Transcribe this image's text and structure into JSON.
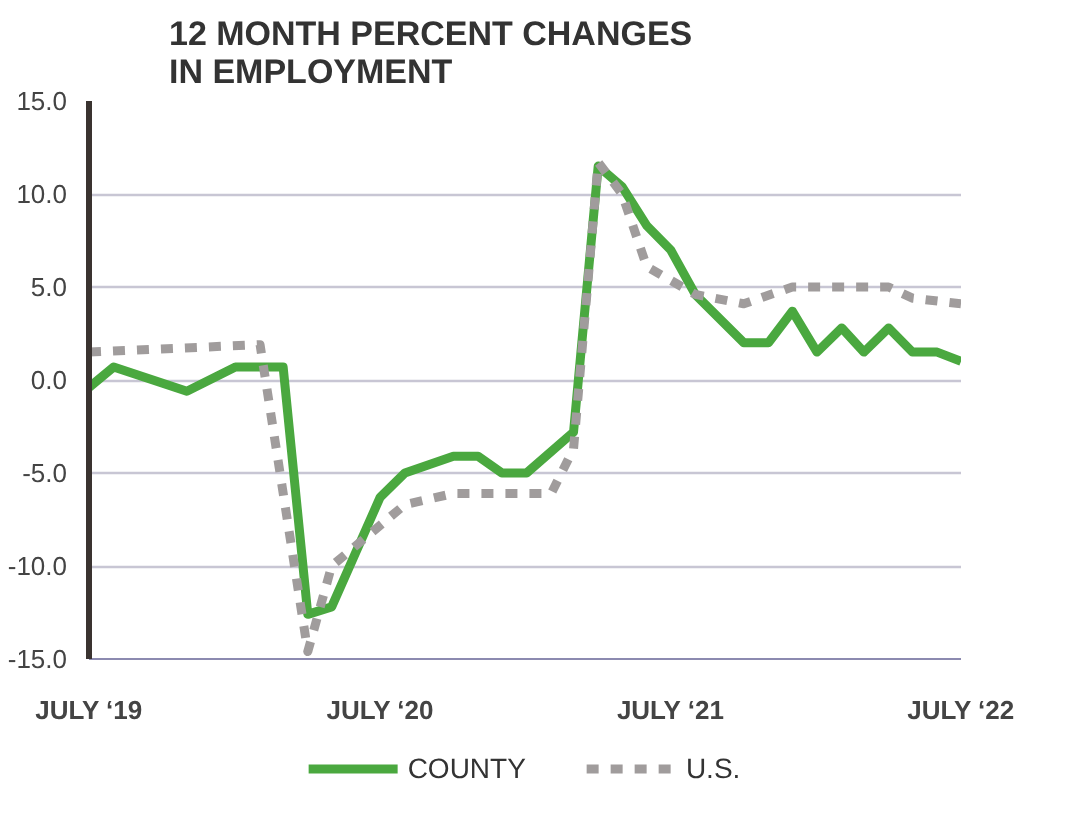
{
  "chart_data": {
    "type": "line",
    "title": "12 MONTH PERCENT CHANGES\nIN EMPLOYMENT",
    "xlim": [
      "2019-07",
      "2022-07"
    ],
    "xticks": [
      {
        "value": "2019-07",
        "label": "JULY ‘19"
      },
      {
        "value": "2020-07",
        "label": "JULY ‘20"
      },
      {
        "value": "2021-07",
        "label": "JULY ‘21"
      },
      {
        "value": "2022-07",
        "label": "JULY ‘22"
      }
    ],
    "ylim": [
      -15,
      15
    ],
    "yticks": [
      {
        "value": -15,
        "label": "-15.0"
      },
      {
        "value": -10,
        "label": "-10.0"
      },
      {
        "value": -5,
        "label": "-5.0"
      },
      {
        "value": 0,
        "label": "0.0"
      },
      {
        "value": 5,
        "label": "5.0"
      },
      {
        "value": 10,
        "label": "10.0"
      },
      {
        "value": 15,
        "label": "15.0"
      }
    ],
    "grid": "y",
    "legend": "bottom",
    "series": [
      {
        "name": "COUNTY",
        "color": "#4aa83f",
        "line_style": "solid",
        "x": [
          "2019-07",
          "2019-08",
          "2019-11",
          "2020-01",
          "2020-03",
          "2020-04",
          "2020-05",
          "2020-07",
          "2020-08",
          "2020-10",
          "2020-11",
          "2020-12",
          "2021-01",
          "2021-03",
          "2021-04",
          "2021-05",
          "2021-06",
          "2021-07",
          "2021-08",
          "2021-10",
          "2021-11",
          "2021-12",
          "2022-01",
          "2022-02",
          "2022-03",
          "2022-04",
          "2022-05",
          "2022-06",
          "2022-07"
        ],
        "values": [
          -0.4,
          0.7,
          -0.6,
          0.7,
          0.7,
          -12.6,
          -12.2,
          -6.3,
          -5.0,
          -4.1,
          -4.1,
          -5.0,
          -5.0,
          -2.8,
          11.5,
          10.4,
          8.3,
          7.0,
          4.6,
          2.0,
          2.0,
          3.7,
          1.5,
          2.8,
          1.5,
          2.8,
          1.5,
          1.5,
          1.0
        ]
      },
      {
        "name": "U.S.",
        "color": "#a09c9c",
        "line_style": "dashed",
        "x": [
          "2019-07",
          "2020-02",
          "2020-04",
          "2020-05",
          "2020-08",
          "2020-10",
          "2021-01",
          "2021-02",
          "2021-03",
          "2021-04",
          "2021-05",
          "2021-06",
          "2021-08",
          "2021-10",
          "2021-12",
          "2022-02",
          "2022-04",
          "2022-05",
          "2022-07"
        ],
        "values": [
          1.5,
          1.9,
          -14.6,
          -10.0,
          -6.7,
          -6.1,
          -6.1,
          -6.1,
          -3.7,
          11.7,
          10.0,
          6.1,
          4.6,
          4.1,
          5.0,
          5.0,
          5.0,
          4.4,
          4.1
        ]
      }
    ]
  }
}
